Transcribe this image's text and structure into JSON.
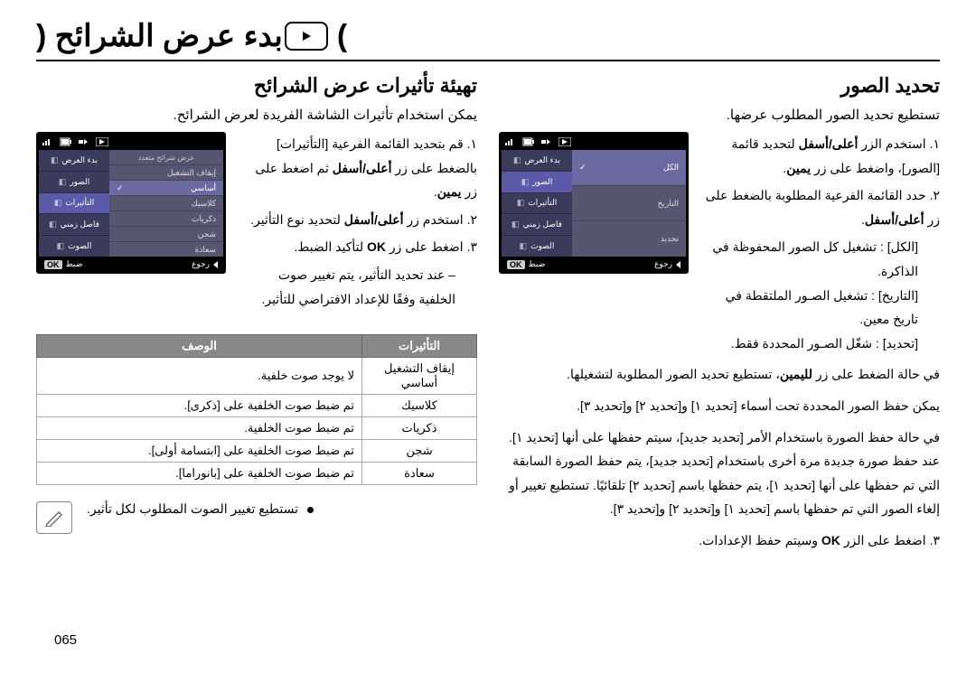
{
  "page_title": "بدء عرض الشرائح (",
  "page_title_close": ")",
  "page_number": "065",
  "right_col": {
    "heading": "تحديد الصور",
    "lead": "تستطيع تحديد الصور المطلوب عرضها.",
    "steps": [
      "١. استخدم الزر <b>أعلى/أسفل</b> لتحديد قائمة [الصور]، واضغط على زر <b>يمين</b>.",
      "٢. حدد القائمة الفرعية المطلوبة بالضغط على زر <b>أعلى/أسفل</b>."
    ],
    "defs": [
      {
        "label": "[الكل]",
        "desc": ": تشغيل كل الصور المحفوظة في الذاكرة."
      },
      {
        "label": "[التاريخ]",
        "desc": ": تشغيل الصـور الملتقطة في تاريخ معين."
      },
      {
        "label": "[تحديد]",
        "desc": ": شغّل الصـور المحددة فقط."
      }
    ],
    "post_defs": "في حالة الضغط على زر <b>لليمين</b>، تستطيع تحديد الصور المطلوبة لتشغيلها.",
    "para1": "يمكن حفظ الصور المحددة تحت أسماء [تحديد ١] و[تحديد ٢] و[تحديد ٣].",
    "para2": "في حالة حفظ الصورة باستخدام الأمر [تحديد جديد]، سيتم حفظها على أنها [تحديد ١]. عند حفظ صورة جديدة مرة أخرى باستخدام [تحديد جديد]، يتم حفظ الصورة السابقة التي تم حفظها على أنها [تحديد ١]، يتم حفظها باسم [تحديد ٢] تلقائيًا. تستطيع تغيير أو إلغاء الصور التي تم حفظها باسم [تحديد ١] و[تحديد ٢] و[تحديد ٣].",
    "step3": "٣. اضغط على الزر <b>OK</b> وسيتم حفظ الإعدادات.",
    "screenshot": {
      "right_strip": [
        {
          "label": "بدء العرض",
          "sel": false
        },
        {
          "label": "الصور",
          "sel": true
        },
        {
          "label": "التأثيرات",
          "sel": false
        },
        {
          "label": "فاصل زمني",
          "sel": false
        },
        {
          "label": "الصوت",
          "sel": false
        }
      ],
      "left_panel": [
        {
          "label": "الكل",
          "sel": true
        },
        {
          "label": "التاريخ",
          "sel": false
        },
        {
          "label": "تحديد",
          "sel": false
        }
      ],
      "footer_left": "رجوع",
      "footer_right": "ضبط",
      "footer_right_key": "OK"
    }
  },
  "left_col": {
    "heading": "تهيئة تأثيرات عرض الشرائح",
    "lead": "يمكن استخدام تأثيرات الشاشة الفريدة لعرض الشرائح.",
    "steps": [
      "١. قم بتحديد القائمة الفرعية [التأثيرات] بالضغط على زر <b>أعلى/أسفل</b> ثم اضغط على زر <b>يمين</b>.",
      "٢. استخدم زر <b>أعلى/أسفل</b> لتحديد نوع التأثير.",
      "٣. اضغط على زر <b>OK</b> لتأكيد الضبط."
    ],
    "dash_note": "– عند تحديد التأثير، يتم تغيير صوت الخلفية وفقًا للإعداد الافتراضي للتأثير.",
    "screenshot": {
      "right_strip": [
        {
          "label": "بدء العرض",
          "sel": false
        },
        {
          "label": "الصور",
          "sel": false
        },
        {
          "label": "التأثيرات",
          "sel": true
        },
        {
          "label": "فاصل زمني",
          "sel": false
        },
        {
          "label": "الصوت",
          "sel": false
        }
      ],
      "left_panel_header": "عرض شرائح متعدد",
      "left_panel": [
        {
          "label": "إيقاف التشغيل",
          "sel": false
        },
        {
          "label": "أساسي",
          "sel": true
        },
        {
          "label": "كلاسيك",
          "sel": false
        },
        {
          "label": "ذكريات",
          "sel": false
        },
        {
          "label": "شجن",
          "sel": false
        },
        {
          "label": "سعادة",
          "sel": false
        }
      ],
      "footer_left": "رجوع",
      "footer_right": "ضبط",
      "footer_right_key": "OK"
    },
    "table": {
      "headers": {
        "effect": "التأثيرات",
        "desc": "الوصف"
      },
      "rows": [
        {
          "effect": "إيقاف التشغيل",
          "desc": "لا يوجد صوت خلفية."
        },
        {
          "effect": "أساسي",
          "desc": ""
        },
        {
          "effect": "كلاسيك",
          "desc": "تم ضبط صوت الخلفية على [ذكرى]."
        },
        {
          "effect": "ذكريات",
          "desc": "تم ضبط صوت الخلفية."
        },
        {
          "effect": "شجن",
          "desc": "تم ضبط صوت الخلفية على [ابتسامة أولى]."
        },
        {
          "effect": "سعادة",
          "desc": "تم ضبط صوت الخلفية على [بانوراما]."
        }
      ]
    },
    "note": "تستطيع تغيير الصوت المطلوب لكل تأثير."
  }
}
